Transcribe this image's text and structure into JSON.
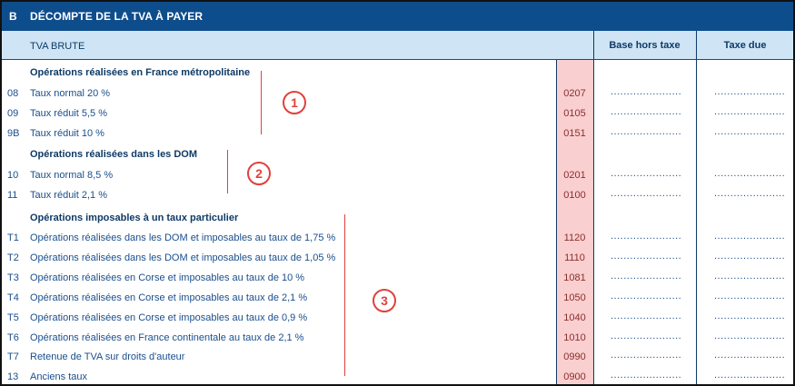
{
  "header": {
    "letter": "B",
    "title": "DÉCOMPTE DE LA TVA À PAYER"
  },
  "subheader": {
    "tva_label": "TVA BRUTE",
    "col_base": "Base hors taxe",
    "col_tax": "Taxe due"
  },
  "sections": [
    {
      "title": "Opérations réalisées en France métropolitaine",
      "marker": "1"
    },
    {
      "title": "Opérations réalisées dans les DOM",
      "marker": "2"
    },
    {
      "title": "Opérations imposables à un taux particulier",
      "marker": "3"
    }
  ],
  "rows": [
    {
      "num": "08",
      "label": "Taux normal 20 %",
      "code": "0207"
    },
    {
      "num": "09",
      "label": "Taux réduit 5,5 %",
      "code": "0105"
    },
    {
      "num": "9B",
      "label": "Taux réduit 10 %",
      "code": "0151"
    },
    {
      "num": "10",
      "label": "Taux normal 8,5 %",
      "code": "0201"
    },
    {
      "num": "11",
      "label": "Taux réduit 2,1 %",
      "code": "0100"
    },
    {
      "num": "T1",
      "label": "Opérations réalisées dans les DOM et imposables au taux de 1,75 %",
      "code": "1120"
    },
    {
      "num": "T2",
      "label": "Opérations réalisées dans les DOM et imposables au taux de 1,05 %",
      "code": "1110"
    },
    {
      "num": "T3",
      "label": "Opérations réalisées en Corse et imposables au taux de 10 %",
      "code": "1081"
    },
    {
      "num": "T4",
      "label": "Opérations réalisées en Corse et imposables au taux de 2,1 %",
      "code": "1050"
    },
    {
      "num": "T5",
      "label": "Opérations réalisées en Corse et imposables au taux de 0,9 %",
      "code": "1040"
    },
    {
      "num": "T6",
      "label": "Opérations réalisées en France continentale au taux de 2,1 %",
      "code": "1010"
    },
    {
      "num": "T7",
      "label": "Retenue de TVA sur droits d'auteur",
      "code": "0990"
    },
    {
      "num": "13",
      "label": "Anciens taux",
      "code": "0900"
    }
  ],
  "dots": "......................",
  "colors": {
    "banner": "#0e4d8c",
    "subheader": "#cfe5f5",
    "code_column": "#f9cfcf",
    "marker": "#e0413d"
  }
}
